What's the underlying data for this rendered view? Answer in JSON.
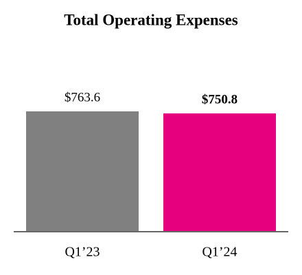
{
  "chart_data": {
    "type": "bar",
    "title": "Total Operating Expenses",
    "categories": [
      "Q1’23",
      "Q1’24"
    ],
    "values": [
      763.6,
      750.8
    ],
    "value_labels": [
      "$763.6",
      "$750.8"
    ],
    "colors": [
      "#808080",
      "#e6007e"
    ],
    "bold_value_labels": [
      false,
      true
    ]
  }
}
